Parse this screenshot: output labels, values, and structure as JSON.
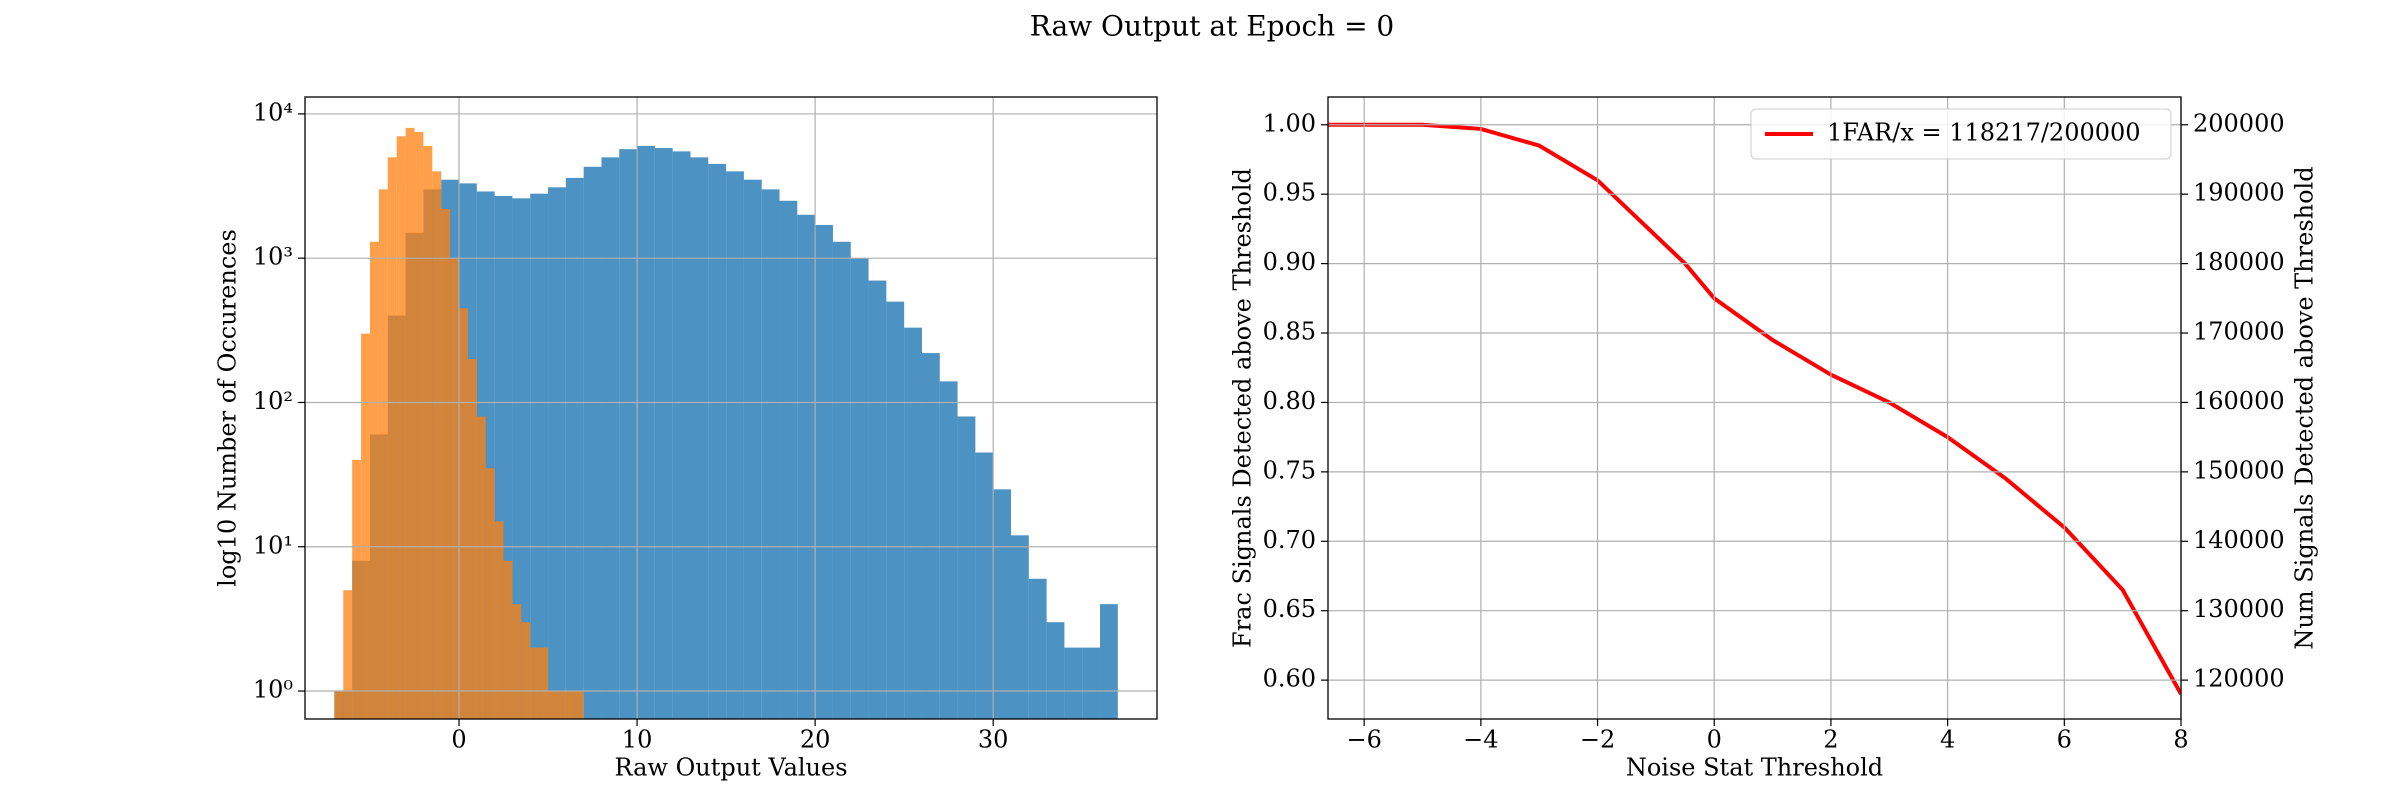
{
  "title": "Raw Output at Epoch = 0",
  "chart_data": [
    {
      "type": "histogram",
      "xlabel": "Raw Output Values",
      "ylabel": "log10 Number of Occurences",
      "log_y": true,
      "grid": true,
      "xlim": [
        -8.65,
        39.2
      ],
      "xticks": [
        0,
        10,
        20,
        30
      ],
      "ylim": [
        0.64,
        13100
      ],
      "yticks": [
        {
          "value": 1,
          "label": "10⁰"
        },
        {
          "value": 10,
          "label": "10¹"
        },
        {
          "value": 100,
          "label": "10²"
        },
        {
          "value": 1000,
          "label": "10³"
        },
        {
          "value": 10000,
          "label": "10⁴"
        }
      ],
      "series": [
        {
          "color": "#1f77b4",
          "opacity": 0.8,
          "bins": [
            -7,
            -6,
            -5,
            -4,
            -3,
            -2,
            -1,
            0,
            1,
            2,
            3,
            4,
            5,
            6,
            7,
            8,
            9,
            10,
            11,
            12,
            13,
            14,
            15,
            16,
            17,
            18,
            19,
            20,
            21,
            22,
            23,
            24,
            25,
            26,
            27,
            28,
            29,
            30,
            31,
            32,
            33,
            34,
            35,
            36,
            37
          ],
          "values": [
            1,
            8,
            60,
            400,
            1500,
            3000,
            3500,
            3300,
            2900,
            2700,
            2600,
            2800,
            3100,
            3600,
            4300,
            5000,
            5700,
            6000,
            5800,
            5500,
            5000,
            4500,
            4000,
            3500,
            3000,
            2500,
            2000,
            1700,
            1300,
            1000,
            700,
            500,
            330,
            220,
            140,
            80,
            45,
            25,
            12,
            6,
            3,
            2,
            2,
            4
          ]
        },
        {
          "color": "#ff7f0e",
          "opacity": 0.75,
          "bins": [
            -7,
            -6.5,
            -6,
            -5.5,
            -5,
            -4.5,
            -4,
            -3.5,
            -3,
            -2.5,
            -2,
            -1.5,
            -1,
            -0.5,
            0,
            0.5,
            1,
            1.5,
            2,
            2.5,
            3,
            3.5,
            4,
            4.5,
            5,
            5.5,
            6,
            6.5,
            7
          ],
          "values": [
            1,
            5,
            40,
            300,
            1300,
            3000,
            5000,
            7000,
            8000,
            7500,
            6000,
            4000,
            2200,
            1000,
            450,
            200,
            80,
            35,
            15,
            8,
            4,
            3,
            2,
            2,
            1,
            1,
            1,
            1
          ]
        }
      ]
    },
    {
      "type": "line",
      "xlabel": "Noise Stat Threshold",
      "ylabel": "Frac Signals Detected above Threshold",
      "y2label": "Num Signals Detected above Threshold",
      "grid": true,
      "legend": "upper right",
      "xlim": [
        -6.62,
        8
      ],
      "xticks": [
        {
          "value": -6,
          "label": "−6"
        },
        {
          "value": -4,
          "label": "−4"
        },
        {
          "value": -2,
          "label": "−2"
        },
        0,
        2,
        4,
        6,
        8
      ],
      "ylim": [
        0.572,
        1.02
      ],
      "yticks": [
        {
          "value": 0.6,
          "label": "0.60"
        },
        0.65,
        {
          "value": 0.7,
          "label": "0.70"
        },
        0.75,
        {
          "value": 0.8,
          "label": "0.80"
        },
        0.85,
        {
          "value": 0.9,
          "label": "0.90"
        },
        0.95,
        {
          "value": 1,
          "label": "1.00"
        }
      ],
      "y2lim": [
        114400,
        204000
      ],
      "y2ticks": [
        120000,
        130000,
        140000,
        150000,
        160000,
        170000,
        180000,
        190000,
        200000
      ],
      "x": [
        -6.62,
        -5,
        -4,
        -3,
        -2,
        -1,
        -0.5,
        0,
        1,
        1.2,
        2,
        3,
        4,
        5,
        6,
        7,
        8
      ],
      "series": [
        {
          "name": "1FAR/x = 118217/200000",
          "color": "#ff0000",
          "values": [
            1.0,
            1.0,
            0.997,
            0.985,
            0.96,
            0.92,
            0.9,
            0.875,
            0.845,
            0.84,
            0.82,
            0.8,
            0.775,
            0.745,
            0.71,
            0.665,
            0.59
          ]
        }
      ]
    }
  ]
}
